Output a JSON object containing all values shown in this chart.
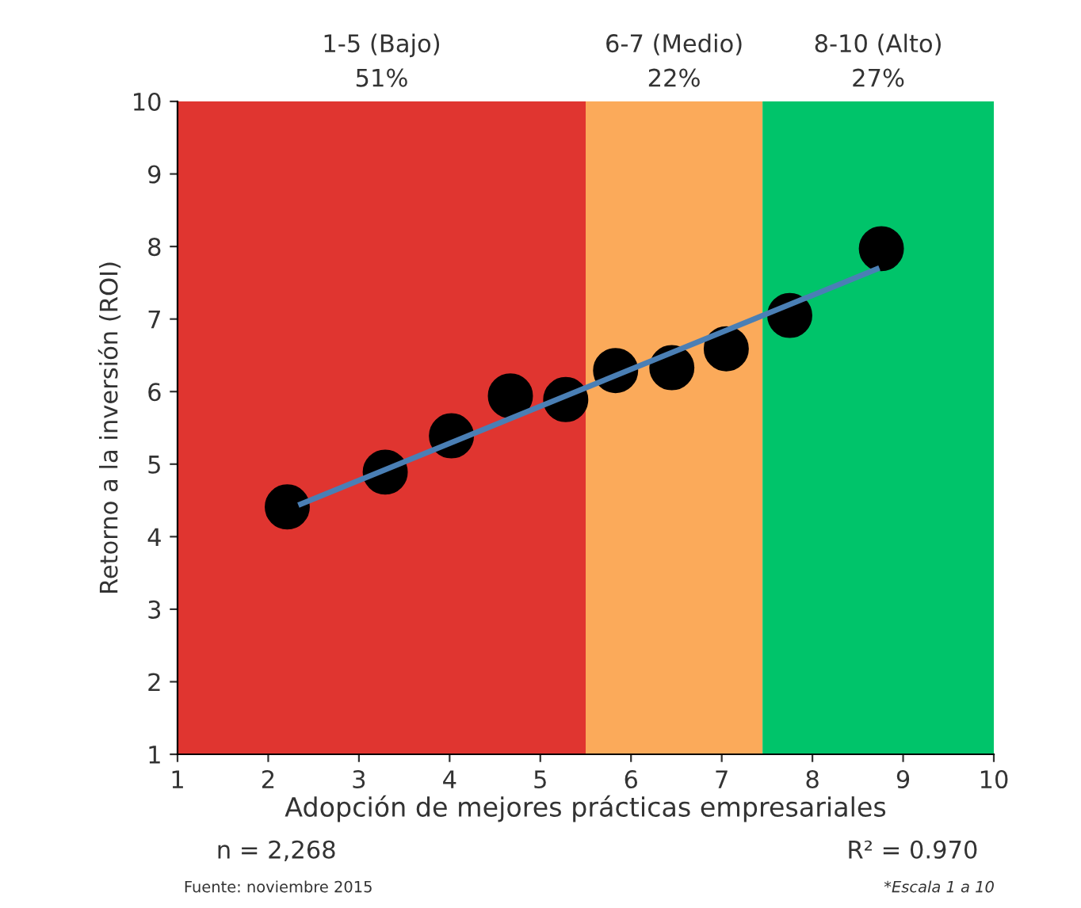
{
  "chart_data": {
    "type": "scatter",
    "xlabel": "Adopción de mejores prácticas empresariales",
    "ylabel": "Retorno a la inversión (ROI)",
    "series": [
      {
        "color": "#000000",
        "marker": "circle",
        "x": [
          2.21,
          3.29,
          4.02,
          4.67,
          5.28,
          5.83,
          6.45,
          7.05,
          7.75,
          8.76
        ],
        "values": [
          4.41,
          4.89,
          5.39,
          5.94,
          5.89,
          6.29,
          6.33,
          6.59,
          7.05,
          7.97
        ]
      },
      {
        "type": "line",
        "color": "#4a7fb5",
        "x": [
          2.36,
          8.71
        ],
        "values": [
          4.45,
          7.69
        ]
      }
    ],
    "bands": [
      {
        "axis": "x",
        "from": 1,
        "to": 5.5,
        "label": "1-5 (Bajo)\n51%",
        "color": "#e03530"
      },
      {
        "axis": "x",
        "from": 5.5,
        "to": 7.45,
        "label": "6-7 (Medio)\n22%",
        "color": "#fbaa5a"
      },
      {
        "axis": "x",
        "from": 7.45,
        "to": 10,
        "label": "8-10 (Alto)\n27%",
        "color": "#00c46a"
      }
    ],
    "xlim": [
      1,
      10
    ],
    "xticks": [
      1,
      2,
      3,
      4,
      5,
      6,
      7,
      8,
      9,
      10
    ],
    "ylim": [
      1,
      10
    ],
    "yticks": [
      1,
      2,
      3,
      4,
      5,
      6,
      7,
      8,
      9,
      10
    ],
    "grid": false,
    "annotations": [
      "n = 2,268",
      "R² = 0.970",
      "Fuente: noviembre 2015",
      "*Escala 1 a 10"
    ]
  }
}
